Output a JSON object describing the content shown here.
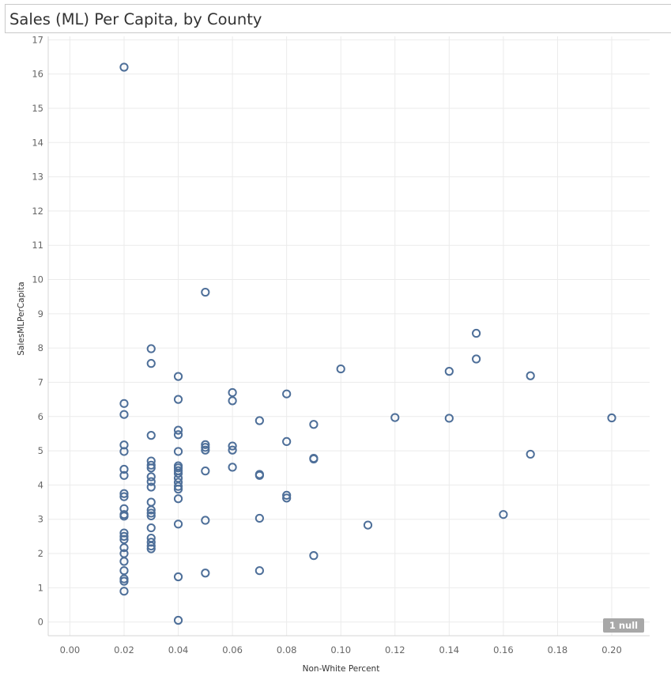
{
  "title": "Sales (ML) Per Capita, by County",
  "null_badge": "1 null",
  "colors": {
    "marker": "#4e6f99",
    "grid": "#ebebeb",
    "axis": "#d4d4d4",
    "badge": "#a8a8a8"
  },
  "chart_data": {
    "type": "scatter",
    "title": "Sales (ML) Per Capita, by County",
    "xlabel": "Non-White Percent",
    "ylabel": "SalesMLPerCapita",
    "xlim": [
      -0.008,
      0.214
    ],
    "ylim": [
      -0.4,
      17.1
    ],
    "x_ticks": [
      "0.00",
      "0.02",
      "0.04",
      "0.06",
      "0.08",
      "0.10",
      "0.12",
      "0.14",
      "0.16",
      "0.18",
      "0.20"
    ],
    "y_ticks": [
      "0",
      "1",
      "2",
      "3",
      "4",
      "5",
      "6",
      "7",
      "8",
      "9",
      "10",
      "11",
      "12",
      "13",
      "14",
      "15",
      "16",
      "17"
    ],
    "grid": true,
    "marker": "hollow-circle",
    "points": [
      {
        "x": 0.02,
        "y": 16.2
      },
      {
        "x": 0.02,
        "y": 6.38
      },
      {
        "x": 0.02,
        "y": 6.06
      },
      {
        "x": 0.02,
        "y": 5.17
      },
      {
        "x": 0.02,
        "y": 4.98
      },
      {
        "x": 0.02,
        "y": 4.46
      },
      {
        "x": 0.02,
        "y": 4.28
      },
      {
        "x": 0.02,
        "y": 3.75
      },
      {
        "x": 0.02,
        "y": 3.66
      },
      {
        "x": 0.02,
        "y": 3.31
      },
      {
        "x": 0.02,
        "y": 3.14
      },
      {
        "x": 0.02,
        "y": 3.09
      },
      {
        "x": 0.02,
        "y": 2.6
      },
      {
        "x": 0.02,
        "y": 2.5
      },
      {
        "x": 0.02,
        "y": 2.41
      },
      {
        "x": 0.02,
        "y": 2.17
      },
      {
        "x": 0.02,
        "y": 2.0
      },
      {
        "x": 0.02,
        "y": 1.77
      },
      {
        "x": 0.02,
        "y": 1.5
      },
      {
        "x": 0.02,
        "y": 1.26
      },
      {
        "x": 0.02,
        "y": 1.19
      },
      {
        "x": 0.02,
        "y": 0.9
      },
      {
        "x": 0.03,
        "y": 7.98
      },
      {
        "x": 0.03,
        "y": 7.55
      },
      {
        "x": 0.03,
        "y": 5.45
      },
      {
        "x": 0.03,
        "y": 4.7
      },
      {
        "x": 0.03,
        "y": 4.58
      },
      {
        "x": 0.03,
        "y": 4.5
      },
      {
        "x": 0.03,
        "y": 4.24
      },
      {
        "x": 0.03,
        "y": 4.1
      },
      {
        "x": 0.03,
        "y": 3.94
      },
      {
        "x": 0.03,
        "y": 3.5
      },
      {
        "x": 0.03,
        "y": 3.27
      },
      {
        "x": 0.03,
        "y": 3.18
      },
      {
        "x": 0.03,
        "y": 3.1
      },
      {
        "x": 0.03,
        "y": 2.75
      },
      {
        "x": 0.03,
        "y": 2.45
      },
      {
        "x": 0.03,
        "y": 2.33
      },
      {
        "x": 0.03,
        "y": 2.22
      },
      {
        "x": 0.03,
        "y": 2.14
      },
      {
        "x": 0.04,
        "y": 7.17
      },
      {
        "x": 0.04,
        "y": 6.5
      },
      {
        "x": 0.04,
        "y": 5.6
      },
      {
        "x": 0.04,
        "y": 5.47
      },
      {
        "x": 0.04,
        "y": 4.98
      },
      {
        "x": 0.04,
        "y": 4.56
      },
      {
        "x": 0.04,
        "y": 4.5
      },
      {
        "x": 0.04,
        "y": 4.42
      },
      {
        "x": 0.04,
        "y": 4.34
      },
      {
        "x": 0.04,
        "y": 4.2
      },
      {
        "x": 0.04,
        "y": 4.08
      },
      {
        "x": 0.04,
        "y": 3.96
      },
      {
        "x": 0.04,
        "y": 3.88
      },
      {
        "x": 0.04,
        "y": 3.6
      },
      {
        "x": 0.04,
        "y": 2.86
      },
      {
        "x": 0.04,
        "y": 1.32
      },
      {
        "x": 0.04,
        "y": 0.05
      },
      {
        "x": 0.05,
        "y": 9.63
      },
      {
        "x": 0.05,
        "y": 5.18
      },
      {
        "x": 0.05,
        "y": 5.1
      },
      {
        "x": 0.05,
        "y": 5.02
      },
      {
        "x": 0.05,
        "y": 4.41
      },
      {
        "x": 0.05,
        "y": 2.97
      },
      {
        "x": 0.05,
        "y": 1.43
      },
      {
        "x": 0.06,
        "y": 6.7
      },
      {
        "x": 0.06,
        "y": 6.46
      },
      {
        "x": 0.06,
        "y": 5.14
      },
      {
        "x": 0.06,
        "y": 5.02
      },
      {
        "x": 0.06,
        "y": 4.52
      },
      {
        "x": 0.07,
        "y": 5.88
      },
      {
        "x": 0.07,
        "y": 4.31
      },
      {
        "x": 0.07,
        "y": 4.28
      },
      {
        "x": 0.07,
        "y": 3.03
      },
      {
        "x": 0.07,
        "y": 1.5
      },
      {
        "x": 0.08,
        "y": 6.66
      },
      {
        "x": 0.08,
        "y": 5.27
      },
      {
        "x": 0.08,
        "y": 3.7
      },
      {
        "x": 0.08,
        "y": 3.62
      },
      {
        "x": 0.09,
        "y": 5.77
      },
      {
        "x": 0.09,
        "y": 4.78
      },
      {
        "x": 0.09,
        "y": 4.76
      },
      {
        "x": 0.09,
        "y": 1.94
      },
      {
        "x": 0.1,
        "y": 7.39
      },
      {
        "x": 0.11,
        "y": 2.83
      },
      {
        "x": 0.12,
        "y": 5.97
      },
      {
        "x": 0.14,
        "y": 7.32
      },
      {
        "x": 0.14,
        "y": 5.95
      },
      {
        "x": 0.15,
        "y": 8.43
      },
      {
        "x": 0.15,
        "y": 7.68
      },
      {
        "x": 0.16,
        "y": 3.14
      },
      {
        "x": 0.17,
        "y": 7.19
      },
      {
        "x": 0.17,
        "y": 4.9
      },
      {
        "x": 0.2,
        "y": 5.96
      }
    ]
  }
}
